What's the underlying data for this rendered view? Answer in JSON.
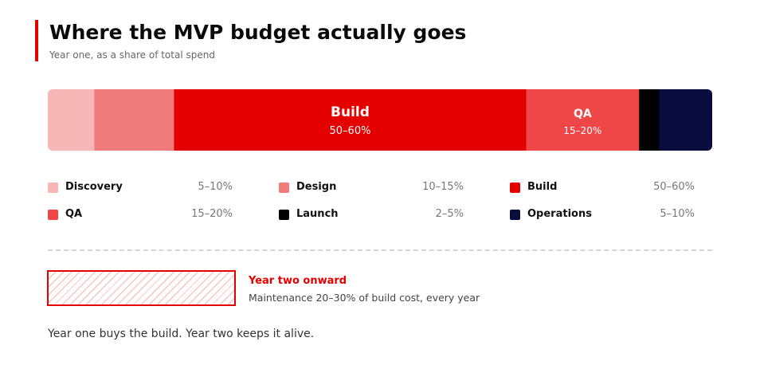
{
  "header": {
    "title": "Where the MVP budget actually goes",
    "subtitle": "Year one, as a share of total spend"
  },
  "chart_data": {
    "type": "bar",
    "orientation": "horizontal-stacked",
    "categories": [
      "Discovery",
      "Design",
      "Build",
      "QA",
      "Launch",
      "Operations"
    ],
    "ranges": [
      "5–10%",
      "10–15%",
      "50–60%",
      "15–20%",
      "2–5%",
      "5–10%"
    ],
    "values": [
      7,
      12,
      53,
      17,
      3,
      8
    ],
    "unit": "% of total spend",
    "colors": [
      "#f7b7b7",
      "#f07b7b",
      "#e50000",
      "#ef4747",
      "#000000",
      "#080d3d"
    ],
    "inline_labels": [
      {
        "category": "Build",
        "label": "Build",
        "range": "50–60%"
      },
      {
        "category": "QA",
        "label": "QA",
        "range": "15–20%"
      }
    ],
    "legend": "below, three columns"
  },
  "note": {
    "title": "Year two onward",
    "body": "Maintenance 20–30% of build cost, every year",
    "border_color": "#e50000"
  },
  "footer": "Year one buys the build. Year two keeps it alive."
}
